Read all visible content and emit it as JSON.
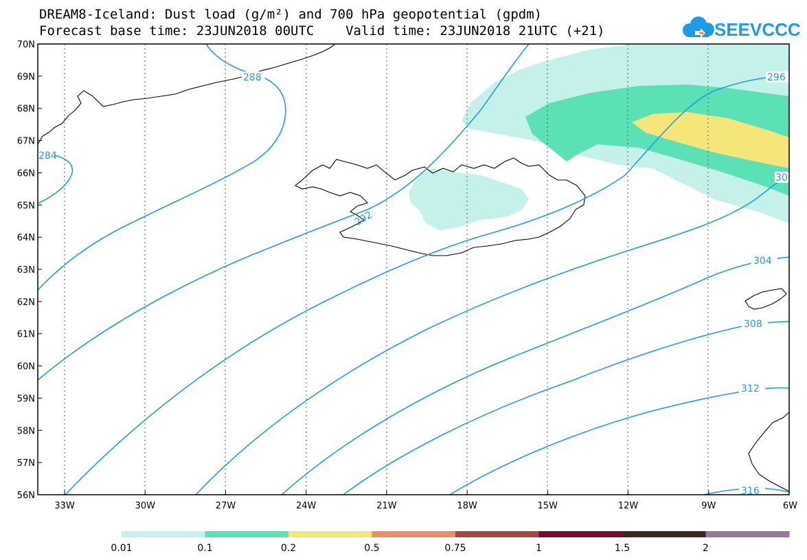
{
  "title": {
    "line1": "DREAM8-Iceland: Dust load (g/m²) and 700 hPa geopotential (gpdm)",
    "line2": "Forecast base time: 23JUN2018 00UTC    Valid time: 23JUN2018 21UTC (+21)"
  },
  "logo": {
    "text": "SEEVCCC",
    "color": "#1e9be6"
  },
  "map": {
    "lon_range": [
      -34,
      -6
    ],
    "lat_range": [
      56,
      70
    ],
    "lon_ticks": [
      {
        "value": -33,
        "label": "33W"
      },
      {
        "value": -30,
        "label": "30W"
      },
      {
        "value": -27,
        "label": "27W"
      },
      {
        "value": -24,
        "label": "24W"
      },
      {
        "value": -21,
        "label": "21W"
      },
      {
        "value": -18,
        "label": "18W"
      },
      {
        "value": -15,
        "label": "15W"
      },
      {
        "value": -12,
        "label": "12W"
      },
      {
        "value": -9,
        "label": "9W"
      },
      {
        "value": -6,
        "label": "6W"
      }
    ],
    "lat_ticks": [
      {
        "value": 70,
        "label": "70N"
      },
      {
        "value": 69,
        "label": "69N"
      },
      {
        "value": 68,
        "label": "68N"
      },
      {
        "value": 67,
        "label": "67N"
      },
      {
        "value": 66,
        "label": "66N"
      },
      {
        "value": 65,
        "label": "65N"
      },
      {
        "value": 64,
        "label": "64N"
      },
      {
        "value": 63,
        "label": "63N"
      },
      {
        "value": 62,
        "label": "62N"
      },
      {
        "value": 61,
        "label": "61N"
      },
      {
        "value": 60,
        "label": "60N"
      },
      {
        "value": 59,
        "label": "59N"
      },
      {
        "value": 58,
        "label": "58N"
      },
      {
        "value": 57,
        "label": "57N"
      },
      {
        "value": 56,
        "label": "56N"
      }
    ],
    "contour_color": "#1e9be6",
    "contour_labels": [
      "284",
      "288",
      "292",
      "296",
      "30",
      "304",
      "308",
      "312",
      "316"
    ]
  },
  "colorbar": {
    "colors": [
      "#c4f2ea",
      "#5ce0b6",
      "#f5e67a",
      "#e89068",
      "#a04a40",
      "#7a0a30",
      "#3a2a1a",
      "#9a74a0"
    ],
    "labels": [
      "0.01",
      "0.1",
      "0.2",
      "0.5",
      "0.75",
      "1",
      "1.5",
      "2"
    ]
  }
}
